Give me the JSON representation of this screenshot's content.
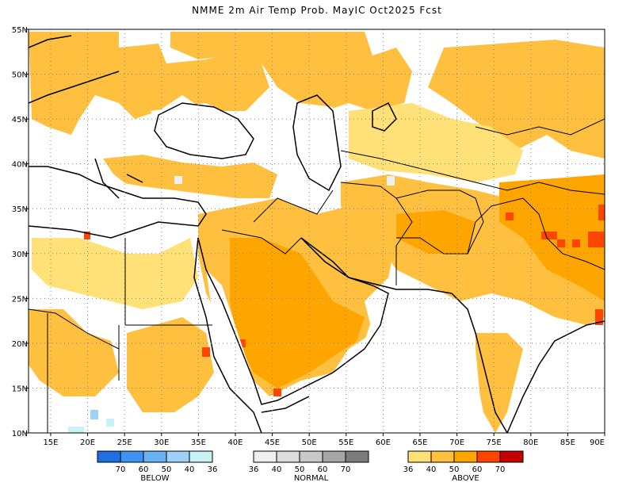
{
  "title": "NMME 2m Air Temp Prob. MayIC  Oct2025 Fcst",
  "map": {
    "lon_range": [
      12,
      90
    ],
    "lat_range": [
      10,
      55
    ],
    "lon_ticks": [
      "15E",
      "20E",
      "25E",
      "30E",
      "35E",
      "40E",
      "45E",
      "50E",
      "55E",
      "60E",
      "65E",
      "70E",
      "75E",
      "80E",
      "85E",
      "90E"
    ],
    "lat_ticks": [
      "10N",
      "15N",
      "20N",
      "25N",
      "30N",
      "35N",
      "40N",
      "45N",
      "50N",
      "55N"
    ],
    "grid": "dotted"
  },
  "legend": [
    {
      "name": "BELOW",
      "colors": [
        "#1f6fe0",
        "#3f93f0",
        "#6cb0f4",
        "#9fd0f7",
        "#c8f2f6"
      ],
      "labels": [
        "70",
        "60",
        "50",
        "40",
        "36"
      ]
    },
    {
      "name": "NORMAL",
      "colors": [
        "#efefef",
        "#dcdcdc",
        "#c8c8c8",
        "#a5a5a5",
        "#7c7c7c"
      ],
      "labels": [
        "36",
        "40",
        "50",
        "60",
        "70"
      ]
    },
    {
      "name": "ABOVE",
      "colors": [
        "#ffe178",
        "#ffc040",
        "#ffa500",
        "#ff4500",
        "#c40000"
      ],
      "labels": [
        "36",
        "40",
        "50",
        "60",
        "70"
      ]
    }
  ]
}
